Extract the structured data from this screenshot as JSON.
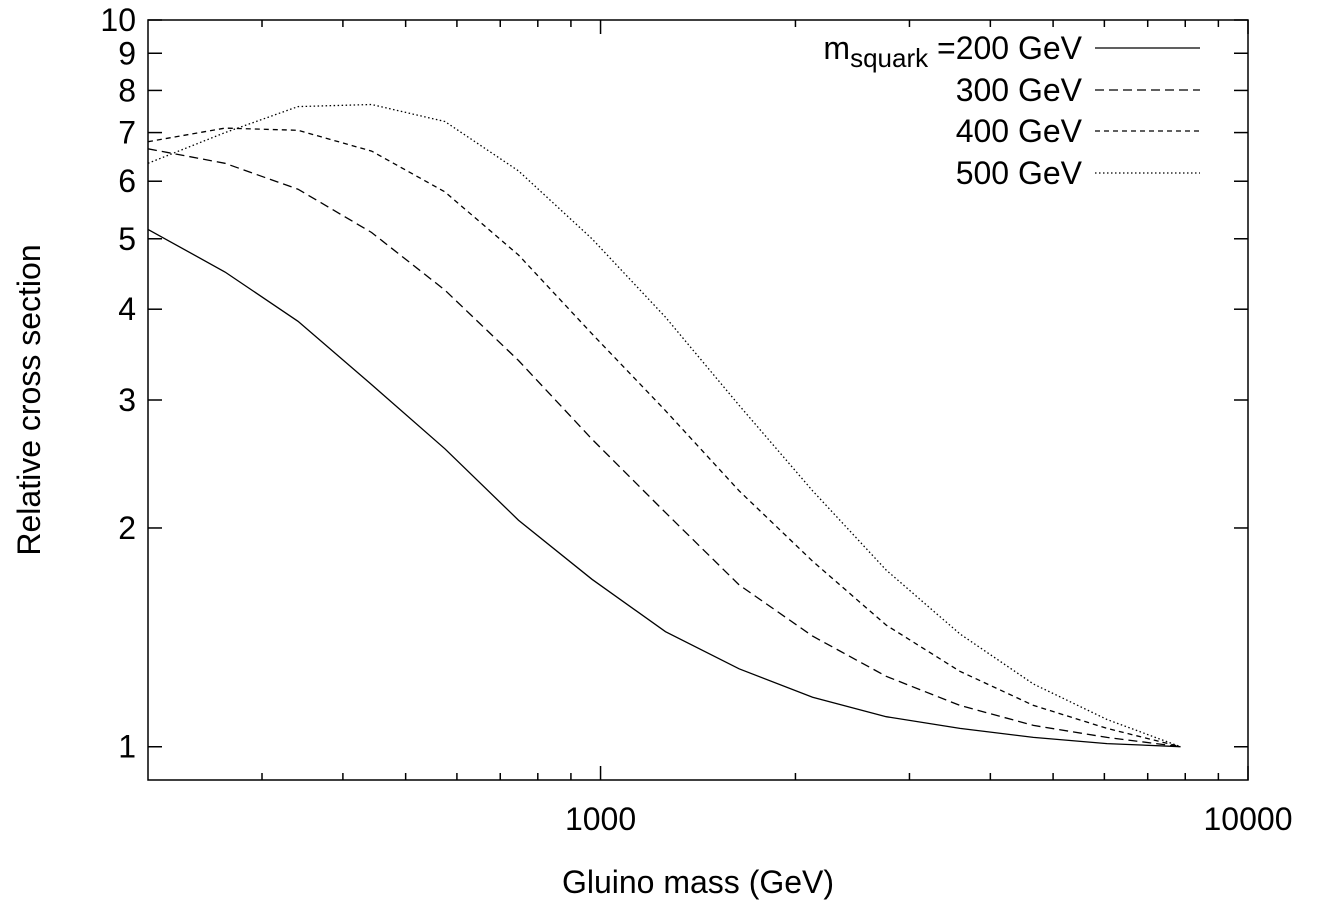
{
  "chart_data": {
    "type": "line",
    "title": "",
    "xlabel": "Gluino mass (GeV)",
    "ylabel": "Relative cross section",
    "xscale": "log",
    "yscale": "log",
    "xlim": [
      200,
      10000
    ],
    "ylim": [
      0.9,
      10
    ],
    "xticks_labeled": [
      {
        "value": 1000,
        "label": "1000"
      },
      {
        "value": 10000,
        "label": "10000"
      }
    ],
    "xticks_minor": [
      300,
      400,
      500,
      600,
      700,
      800,
      900,
      2000,
      3000,
      4000,
      5000,
      6000,
      7000,
      8000,
      9000
    ],
    "yticks": [
      {
        "value": 1,
        "label": "1"
      },
      {
        "value": 2,
        "label": "2"
      },
      {
        "value": 3,
        "label": "3"
      },
      {
        "value": 4,
        "label": "4"
      },
      {
        "value": 5,
        "label": "5"
      },
      {
        "value": 6,
        "label": "6"
      },
      {
        "value": 7,
        "label": "7"
      },
      {
        "value": 8,
        "label": "8"
      },
      {
        "value": 9,
        "label": "9"
      },
      {
        "value": 10,
        "label": "10"
      }
    ],
    "grid": false,
    "legend_position": "top-right",
    "legend_prefix": "m",
    "legend_prefix_sub": "squark",
    "legend_prefix_suffix": " = ",
    "series": [
      {
        "name": "200 GeV",
        "dash": "solid",
        "x": [
          200,
          263,
          341,
          443,
          575,
          747,
          970,
          1260,
          1637,
          2126,
          2762,
          3589,
          4662,
          6056,
          7866
        ],
        "y": [
          5.15,
          4.5,
          3.85,
          3.15,
          2.57,
          2.05,
          1.7,
          1.44,
          1.28,
          1.17,
          1.1,
          1.06,
          1.03,
          1.01,
          1.0
        ]
      },
      {
        "name": "300 GeV",
        "dash": "long-dash",
        "x": [
          200,
          263,
          341,
          443,
          575,
          747,
          970,
          1260,
          1637,
          2126,
          2762,
          3589,
          4662,
          6056,
          7866
        ],
        "y": [
          6.65,
          6.35,
          5.85,
          5.1,
          4.25,
          3.4,
          2.65,
          2.1,
          1.67,
          1.42,
          1.25,
          1.14,
          1.07,
          1.03,
          1.0
        ]
      },
      {
        "name": "400 GeV",
        "dash": "short-dash",
        "x": [
          200,
          263,
          341,
          443,
          575,
          747,
          970,
          1260,
          1637,
          2126,
          2762,
          3589,
          4662,
          6056,
          7866
        ],
        "y": [
          6.8,
          7.1,
          7.05,
          6.6,
          5.8,
          4.75,
          3.7,
          2.9,
          2.25,
          1.8,
          1.47,
          1.27,
          1.14,
          1.06,
          1.0
        ]
      },
      {
        "name": "500 GeV",
        "dash": "dotted",
        "x": [
          200,
          263,
          341,
          443,
          575,
          747,
          970,
          1260,
          1637,
          2126,
          2762,
          3589,
          4662,
          6056,
          7866
        ],
        "y": [
          6.35,
          7.0,
          7.6,
          7.65,
          7.25,
          6.2,
          5.0,
          3.9,
          2.95,
          2.25,
          1.75,
          1.43,
          1.22,
          1.09,
          1.0
        ]
      }
    ]
  }
}
